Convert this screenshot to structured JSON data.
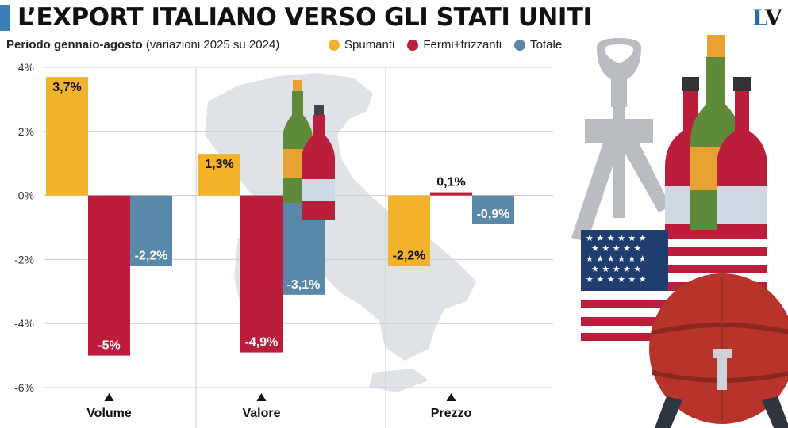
{
  "header": {
    "title": "L’EXPORT ITALIANO VERSO GLI STATI UNITI",
    "logo_l": "L",
    "logo_v": "V",
    "subtitle_bold": "Periodo gennaio-agosto",
    "subtitle_rest": "(variazioni 2025 su 2024)"
  },
  "legend": [
    {
      "name": "Spumanti",
      "color": "#f2b32b"
    },
    {
      "name": "Fermi+frizzanti",
      "color": "#bb1e3a"
    },
    {
      "name": "Totale",
      "color": "#5a88a8"
    }
  ],
  "chart_data": {
    "type": "bar",
    "categories": [
      "Volume",
      "Valore",
      "Prezzo"
    ],
    "series": [
      {
        "name": "Spumanti",
        "values": [
          3.7,
          1.3,
          -2.2
        ],
        "labels": [
          "3,7%",
          "1,3%",
          "-2,2%"
        ],
        "color": "#f2b32b"
      },
      {
        "name": "Fermi+frizzanti",
        "values": [
          -5.0,
          -4.9,
          0.1
        ],
        "labels": [
          "-5%",
          "-4,9%",
          "0,1%"
        ],
        "color": "#bb1e3a"
      },
      {
        "name": "Totale",
        "values": [
          -2.2,
          -3.1,
          -0.9
        ],
        "labels": [
          "-2,2%",
          "-3,1%",
          "-0,9%"
        ],
        "color": "#5a88a8"
      }
    ],
    "yticks": [
      "4%",
      "2%",
      "0%",
      "-2%",
      "-4%",
      "-6%"
    ],
    "ylim": [
      -6,
      4
    ],
    "grid": true,
    "legend_position": "top"
  },
  "decor": {
    "flag_color_red": "#bb1e3a",
    "flag_color_blue": "#1f3d6e",
    "barrel_color": "#b8342a",
    "map_color": "#dfe3e8"
  }
}
